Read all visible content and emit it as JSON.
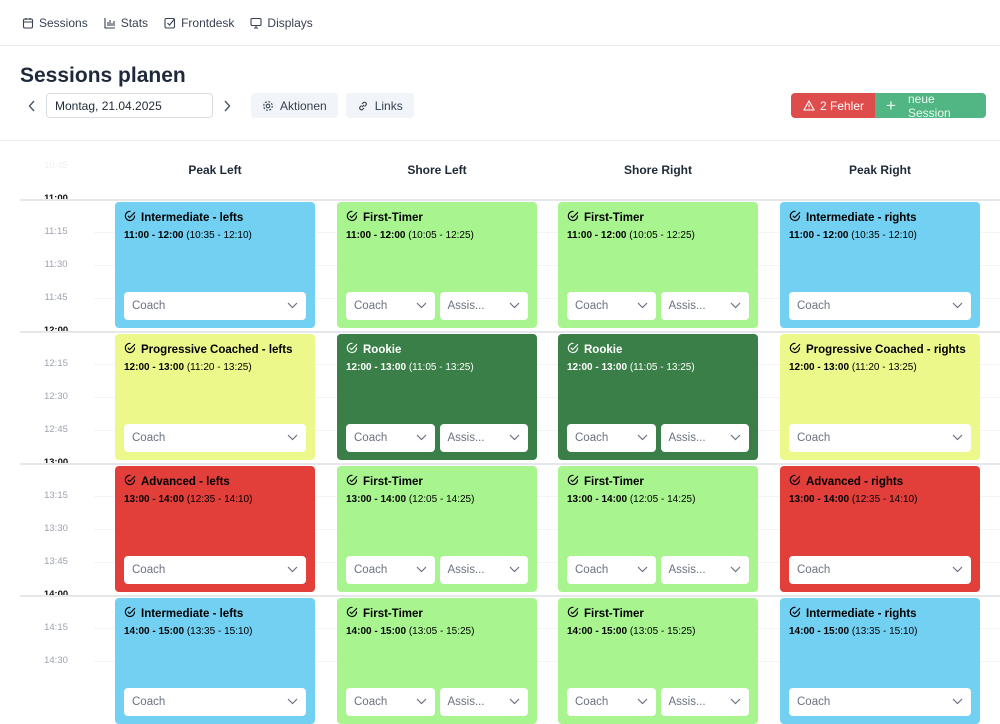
{
  "nav": [
    {
      "label": "Sessions",
      "icon": "calendar-icon"
    },
    {
      "label": "Stats",
      "icon": "bar-chart-icon"
    },
    {
      "label": "Frontdesk",
      "icon": "checkbox-icon"
    },
    {
      "label": "Displays",
      "icon": "monitor-icon"
    }
  ],
  "page_title": "Sessions planen",
  "toolbar": {
    "date": "Montag, 21.04.2025",
    "actions_label": "Aktionen",
    "links_label": "Links",
    "errors_label": "2 Fehler",
    "new_session_label": "neue Session"
  },
  "colors": {
    "error": "#de4d4b",
    "new": "#52b684",
    "blue": "#72d0f2",
    "green": "#a8f58f",
    "yellow": "#ecf98a",
    "darkgreen": "#3a7f47",
    "red": "#e23f3a"
  },
  "columns": [
    "Peak Left",
    "Shore Left",
    "Shore Right",
    "Peak Right"
  ],
  "times": [
    "10:45",
    "11:00",
    "11:15",
    "11:30",
    "11:45",
    "12:00",
    "12:15",
    "12:30",
    "12:45",
    "13:00",
    "13:15",
    "13:30",
    "13:45",
    "14:00",
    "14:15",
    "14:30"
  ],
  "coach_placeholder": "Coach",
  "assist_placeholder": "Assis...",
  "rows": [
    [
      {
        "title": "Intermediate - lefts",
        "time": "11:00 - 12:00",
        "range": "(10:35 - 12:10)",
        "color": "blue",
        "assist": false
      },
      {
        "title": "First-Timer",
        "time": "11:00 - 12:00",
        "range": "(10:05 - 12:25)",
        "color": "green",
        "assist": true
      },
      {
        "title": "First-Timer",
        "time": "11:00 - 12:00",
        "range": "(10:05 - 12:25)",
        "color": "green",
        "assist": true
      },
      {
        "title": "Intermediate - rights",
        "time": "11:00 - 12:00",
        "range": "(10:35 - 12:10)",
        "color": "blue",
        "assist": false
      }
    ],
    [
      {
        "title": "Progressive Coached - lefts",
        "time": "12:00 - 13:00",
        "range": "(11:20 - 13:25)",
        "color": "yellow",
        "assist": false
      },
      {
        "title": "Rookie",
        "time": "12:00 - 13:00",
        "range": "(11:05 - 13:25)",
        "color": "darkgreen",
        "assist": true
      },
      {
        "title": "Rookie",
        "time": "12:00 - 13:00",
        "range": "(11:05 - 13:25)",
        "color": "darkgreen",
        "assist": true
      },
      {
        "title": "Progressive Coached - rights",
        "time": "12:00 - 13:00",
        "range": "(11:20 - 13:25)",
        "color": "yellow",
        "assist": false
      }
    ],
    [
      {
        "title": "Advanced - lefts",
        "time": "13:00 - 14:00",
        "range": "(12:35 - 14:10)",
        "color": "red",
        "assist": false
      },
      {
        "title": "First-Timer",
        "time": "13:00 - 14:00",
        "range": "(12:05 - 14:25)",
        "color": "green",
        "assist": true
      },
      {
        "title": "First-Timer",
        "time": "13:00 - 14:00",
        "range": "(12:05 - 14:25)",
        "color": "green",
        "assist": true
      },
      {
        "title": "Advanced - rights",
        "time": "13:00 - 14:00",
        "range": "(12:35 - 14:10)",
        "color": "red",
        "assist": false
      }
    ],
    [
      {
        "title": "Intermediate - lefts",
        "time": "14:00 - 15:00",
        "range": "(13:35 - 15:10)",
        "color": "blue",
        "assist": false
      },
      {
        "title": "First-Timer",
        "time": "14:00 - 15:00",
        "range": "(13:05 - 15:25)",
        "color": "green",
        "assist": true
      },
      {
        "title": "First-Timer",
        "time": "14:00 - 15:00",
        "range": "(13:05 - 15:25)",
        "color": "green",
        "assist": true
      },
      {
        "title": "Intermediate - rights",
        "time": "14:00 - 15:00",
        "range": "(13:35 - 15:10)",
        "color": "blue",
        "assist": false
      }
    ]
  ]
}
